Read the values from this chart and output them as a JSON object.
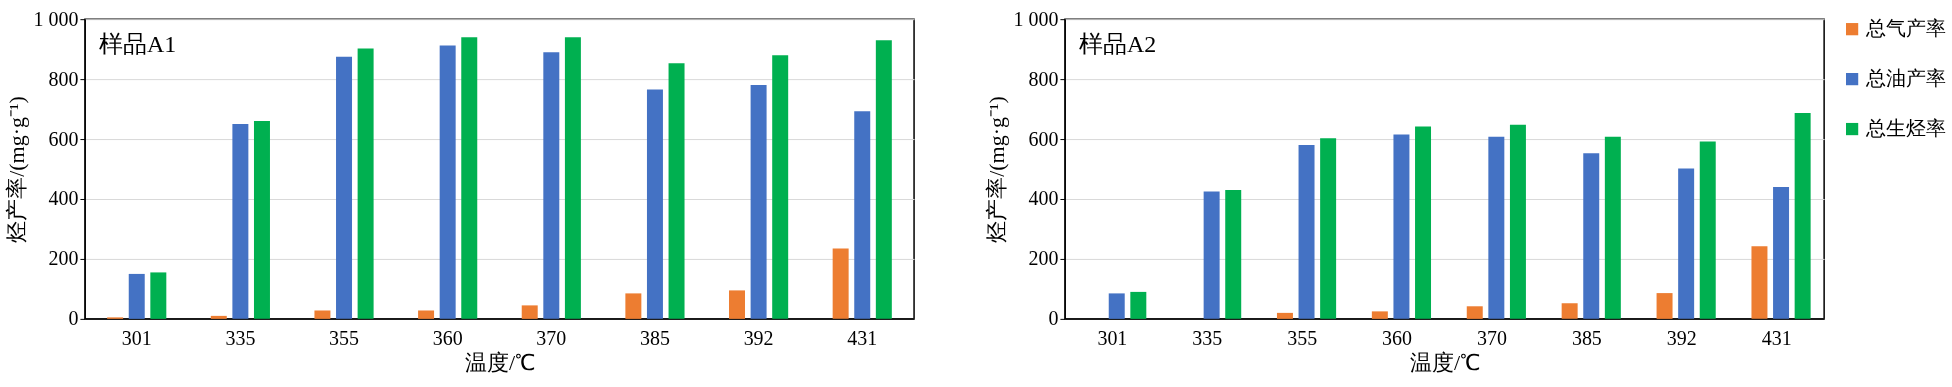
{
  "chart_data": [
    {
      "type": "bar",
      "annotations": [
        "样品A1"
      ],
      "xlabel": "温度/℃",
      "ylabel": "烃产率/(mg·g⁻¹)",
      "categories": [
        "301",
        "335",
        "355",
        "360",
        "370",
        "385",
        "392",
        "431"
      ],
      "series": [
        {
          "color": "#ed7d31",
          "values": [
            5,
            10,
            28,
            28,
            45,
            85,
            95,
            235
          ]
        },
        {
          "color": "#4472c4",
          "values": [
            150,
            650,
            875,
            912,
            890,
            765,
            780,
            693
          ]
        },
        {
          "color": "#00b050",
          "values": [
            155,
            660,
            902,
            940,
            940,
            853,
            880,
            930
          ]
        }
      ],
      "ylim": [
        0,
        1000
      ],
      "yticks": [
        0,
        200,
        400,
        600,
        800,
        {
          "value": 1000,
          "label": "1 000"
        }
      ],
      "grid": "y"
    },
    {
      "type": "bar",
      "annotations": [
        "样品A2"
      ],
      "xlabel": "温度/℃",
      "ylabel": "烃产率/(mg·g⁻¹)",
      "categories": [
        "301",
        "335",
        "355",
        "360",
        "370",
        "385",
        "392",
        "431"
      ],
      "series": [
        {
          "name": "总气产率",
          "color": "#ed7d31",
          "values": [
            0,
            0,
            20,
            25,
            42,
            52,
            86,
            242
          ]
        },
        {
          "name": "总油产率",
          "color": "#4472c4",
          "values": [
            85,
            425,
            580,
            615,
            608,
            553,
            502,
            440
          ]
        },
        {
          "name": "总生烃率",
          "color": "#00b050",
          "values": [
            90,
            430,
            603,
            642,
            648,
            608,
            592,
            687
          ]
        }
      ],
      "ylim": [
        0,
        1000
      ],
      "yticks": [
        0,
        200,
        400,
        600,
        800,
        {
          "value": 1000,
          "label": "1 000"
        }
      ],
      "grid": "y",
      "legend": "right"
    }
  ]
}
